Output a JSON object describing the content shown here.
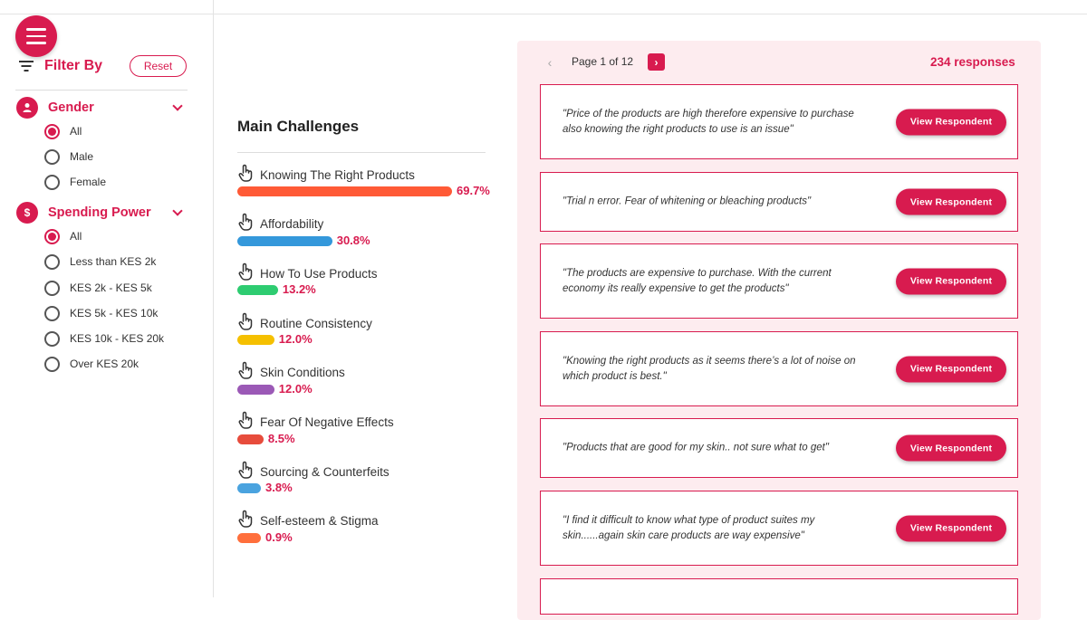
{
  "sidebar": {
    "filter_title": "Filter By",
    "reset_label": "Reset",
    "gender": {
      "label": "Gender",
      "options": [
        "All",
        "Male",
        "Female"
      ],
      "selected": "All"
    },
    "spending": {
      "badge": "$",
      "label": "Spending Power",
      "options": [
        "All",
        "Less than KES 2k",
        "KES 2k - KES 5k",
        "KES 5k - KES 10k",
        "KES 10k - KES 20k",
        "Over KES 20k"
      ],
      "selected": "All"
    }
  },
  "chart": {
    "title": "Main Challenges",
    "items": [
      {
        "name": "Knowing The Right Products",
        "pct": "69.7%",
        "value": 69.7,
        "color": "#ff5a36"
      },
      {
        "name": "Affordability",
        "pct": "30.8%",
        "value": 30.8,
        "color": "#3498db"
      },
      {
        "name": "How To Use Products",
        "pct": "13.2%",
        "value": 13.2,
        "color": "#2ecc71"
      },
      {
        "name": "Routine Consistency",
        "pct": "12.0%",
        "value": 12.0,
        "color": "#f5c000"
      },
      {
        "name": "Skin Conditions",
        "pct": "12.0%",
        "value": 12.0,
        "color": "#9b59b6"
      },
      {
        "name": "Fear Of Negative Effects",
        "pct": "8.5%",
        "value": 8.5,
        "color": "#e74c3c"
      },
      {
        "name": "Sourcing & Counterfeits",
        "pct": "3.8%",
        "value": 3.8,
        "color": "#4aa3df"
      },
      {
        "name": "Self-esteem & Stigma",
        "pct": "0.9%",
        "value": 0.9,
        "color": "#ff6f3c"
      }
    ]
  },
  "responses": {
    "page_label": "Page 1 of 12",
    "count_label": "234 responses",
    "view_label": "View Respondent",
    "items": [
      "\"Price of the products are high therefore expensive to purchase also knowing the right products to use is an issue\"",
      "\"Trial n error. Fear of whitening or bleaching products\"",
      "\"The products are expensive to purchase. With the current economy its really expensive to get the products\"",
      "\"Knowing the right products as it seems there’s a lot of noise on which product is best.\"",
      "\"Products that are good for my skin.. not sure what to get\"",
      "\"I find it difficult to know what type of product suites my skin......again skin care products are way expensive\""
    ]
  },
  "colors": {
    "accent": "#d81b4f",
    "panel_bg": "#fdecef"
  },
  "icons": [
    "menu-icon",
    "filter-icon",
    "person-icon",
    "dollar-icon",
    "chevron-down-icon",
    "hand-pointer-icon",
    "chevron-left-icon",
    "chevron-right-icon"
  ]
}
